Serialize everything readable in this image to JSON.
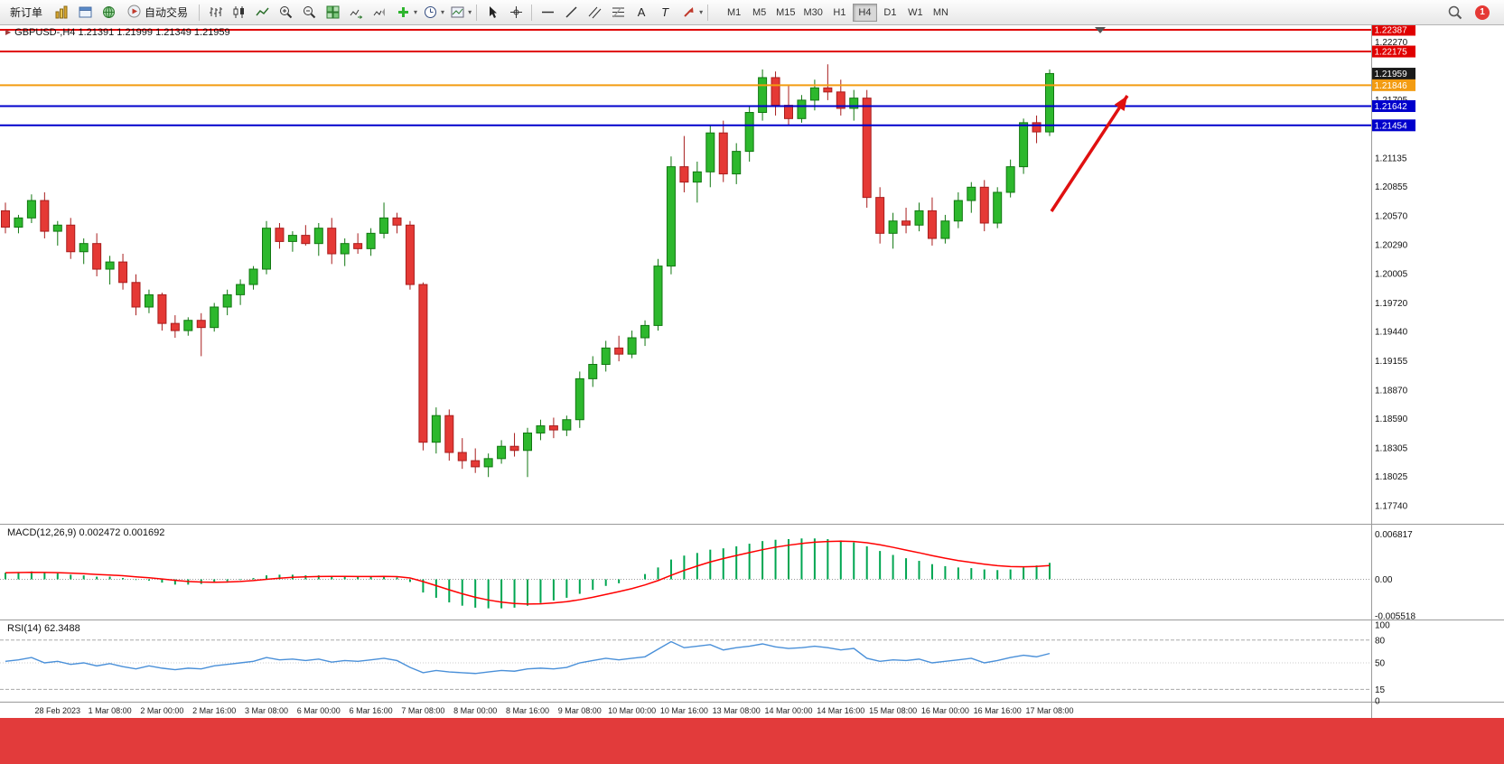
{
  "window": {
    "footer_band_color": "#e23b3b"
  },
  "toolbar": {
    "new_order_label": "新订单",
    "auto_trading_label": "自动交易",
    "timeframes": [
      "M1",
      "M5",
      "M15",
      "M30",
      "H1",
      "H4",
      "D1",
      "W1",
      "MN"
    ],
    "active_timeframe": "H4",
    "notification_count": "1",
    "icons": [
      "market-watch",
      "data-window",
      "navigator",
      "auto-trading",
      "bar-chart",
      "candlestick-chart",
      "line-chart",
      "zoom-in",
      "zoom-out",
      "tile-windows",
      "auto-scroll",
      "chart-shift",
      "add-indicator",
      "periods",
      "templates",
      "cursor",
      "crosshair",
      "horizontal-line-tool",
      "trendline-tool",
      "channel-tool",
      "fibonacci-tool",
      "text-tool",
      "label-tool",
      "arrow-tools",
      "search",
      "notification"
    ]
  },
  "main_chart": {
    "title": "GBPUSD-,H4 1.21391 1.21999 1.21349 1.21959",
    "current_price_label": "1.21959"
  },
  "macd_panel": {
    "name": "MACD(12,26,9)",
    "value_main": "0.002472",
    "value_signal": "0.001692"
  },
  "rsi_panel": {
    "name": "RSI(14)",
    "value": "62.3488"
  },
  "chart_data": {
    "type": "candlestick",
    "symbol": "GBPUSD-",
    "timeframe": "H4",
    "panels": [
      "price",
      "macd",
      "rsi"
    ],
    "colors": {
      "bull": "#2db82d",
      "bull_border": "#117711",
      "bear": "#e53935",
      "bear_border": "#a81d1d",
      "macd_hist": "#00a651",
      "macd_signal": "#ff0000",
      "rsi_line": "#4a90d9",
      "hline_red": "#e00000",
      "hline_orange": "#f39c12",
      "hline_blue": "#0000cc",
      "arrow": "#e01010"
    },
    "price_axis": {
      "top_price": 1.22387,
      "bottom_price": 1.1774,
      "ticks": [
        "1.22270",
        "1.21705",
        "1.21135",
        "1.20855",
        "1.20570",
        "1.20290",
        "1.20005",
        "1.19720",
        "1.19440",
        "1.19155",
        "1.18870",
        "1.18590",
        "1.18305",
        "1.18025",
        "1.17740"
      ]
    },
    "badges": [
      {
        "label": "1.22387",
        "price": 1.22387,
        "color": "#e00000"
      },
      {
        "label": "1.22175",
        "price": 1.22175,
        "color": "#e00000"
      },
      {
        "label": "1.21959",
        "price": 1.21959,
        "color": "#1a1a1a"
      },
      {
        "label": "1.21846",
        "price": 1.21846,
        "color": "#f39c12"
      },
      {
        "label": "1.21642",
        "price": 1.21642,
        "color": "#0000cc"
      },
      {
        "label": "1.21454",
        "price": 1.21454,
        "color": "#0000cc"
      }
    ],
    "hlines": [
      {
        "price": 1.22387,
        "color": "#e00000"
      },
      {
        "price": 1.22175,
        "color": "#e00000"
      },
      {
        "price": 1.21846,
        "color": "#f39c12"
      },
      {
        "price": 1.21642,
        "color": "#0000cc"
      },
      {
        "price": 1.21454,
        "color": "#0000cc"
      }
    ],
    "ohlc": [
      [
        1.2062,
        1.207,
        1.204,
        1.2046
      ],
      [
        1.2046,
        1.2058,
        1.204,
        1.2055
      ],
      [
        1.2055,
        1.2078,
        1.205,
        1.2072
      ],
      [
        1.2072,
        1.208,
        1.2035,
        1.2042
      ],
      [
        1.2042,
        1.2052,
        1.2028,
        1.2048
      ],
      [
        1.2048,
        1.2055,
        1.2015,
        1.2022
      ],
      [
        1.2022,
        1.2035,
        1.201,
        1.203
      ],
      [
        1.203,
        1.204,
        1.1998,
        1.2005
      ],
      [
        1.2005,
        1.2018,
        1.199,
        1.2012
      ],
      [
        1.2012,
        1.202,
        1.1985,
        1.1992
      ],
      [
        1.1992,
        1.2,
        1.196,
        1.1968
      ],
      [
        1.1968,
        1.1985,
        1.1962,
        1.198
      ],
      [
        1.198,
        1.1982,
        1.1945,
        1.1952
      ],
      [
        1.1952,
        1.196,
        1.1938,
        1.1945
      ],
      [
        1.1945,
        1.1958,
        1.194,
        1.1955
      ],
      [
        1.1955,
        1.1962,
        1.192,
        1.1948
      ],
      [
        1.1948,
        1.1972,
        1.1944,
        1.1968
      ],
      [
        1.1968,
        1.1985,
        1.196,
        1.198
      ],
      [
        1.198,
        1.1995,
        1.197,
        1.199
      ],
      [
        1.199,
        1.2008,
        1.1985,
        1.2005
      ],
      [
        1.2005,
        1.2052,
        1.2,
        1.2045
      ],
      [
        1.2045,
        1.205,
        1.2025,
        1.2032
      ],
      [
        1.2032,
        1.2042,
        1.2022,
        1.2038
      ],
      [
        1.2038,
        1.2048,
        1.2028,
        1.203
      ],
      [
        1.203,
        1.205,
        1.2018,
        1.2045
      ],
      [
        1.2045,
        1.2055,
        1.201,
        1.202
      ],
      [
        1.202,
        1.2035,
        1.2008,
        1.203
      ],
      [
        1.203,
        1.204,
        1.202,
        1.2025
      ],
      [
        1.2025,
        1.2045,
        1.2018,
        1.204
      ],
      [
        1.204,
        1.207,
        1.2035,
        1.2055
      ],
      [
        1.2055,
        1.206,
        1.204,
        1.2048
      ],
      [
        1.2048,
        1.2052,
        1.1985,
        1.199
      ],
      [
        1.199,
        1.1992,
        1.1828,
        1.1836
      ],
      [
        1.1836,
        1.187,
        1.1825,
        1.1862
      ],
      [
        1.1862,
        1.1868,
        1.1818,
        1.1826
      ],
      [
        1.1826,
        1.184,
        1.181,
        1.1818
      ],
      [
        1.1818,
        1.183,
        1.1806,
        1.1812
      ],
      [
        1.1812,
        1.1825,
        1.1802,
        1.182
      ],
      [
        1.182,
        1.1838,
        1.1815,
        1.1832
      ],
      [
        1.1832,
        1.1845,
        1.1822,
        1.1828
      ],
      [
        1.1828,
        1.185,
        1.1802,
        1.1845
      ],
      [
        1.1845,
        1.1858,
        1.1838,
        1.1852
      ],
      [
        1.1852,
        1.186,
        1.184,
        1.1848
      ],
      [
        1.1848,
        1.1862,
        1.1842,
        1.1858
      ],
      [
        1.1858,
        1.1905,
        1.185,
        1.1898
      ],
      [
        1.1898,
        1.192,
        1.189,
        1.1912
      ],
      [
        1.1912,
        1.1935,
        1.1905,
        1.1928
      ],
      [
        1.1928,
        1.194,
        1.1915,
        1.1922
      ],
      [
        1.1922,
        1.1945,
        1.1918,
        1.1938
      ],
      [
        1.1938,
        1.1955,
        1.193,
        1.195
      ],
      [
        1.195,
        1.2015,
        1.1945,
        1.2008
      ],
      [
        1.2008,
        1.2115,
        1.2,
        1.2105
      ],
      [
        1.2105,
        1.2135,
        1.208,
        1.209
      ],
      [
        1.209,
        1.211,
        1.207,
        1.21
      ],
      [
        1.21,
        1.2145,
        1.2085,
        1.2138
      ],
      [
        1.2138,
        1.215,
        1.209,
        1.2098
      ],
      [
        1.2098,
        1.2128,
        1.2088,
        1.212
      ],
      [
        1.212,
        1.2165,
        1.211,
        1.2158
      ],
      [
        1.2158,
        1.22,
        1.215,
        1.2192
      ],
      [
        1.2192,
        1.2198,
        1.2155,
        1.2165
      ],
      [
        1.2165,
        1.2185,
        1.2145,
        1.2152
      ],
      [
        1.2152,
        1.2175,
        1.2148,
        1.217
      ],
      [
        1.217,
        1.219,
        1.216,
        1.2182
      ],
      [
        1.2182,
        1.2205,
        1.217,
        1.2178
      ],
      [
        1.2178,
        1.219,
        1.2155,
        1.2162
      ],
      [
        1.2162,
        1.218,
        1.215,
        1.2172
      ],
      [
        1.2172,
        1.218,
        1.2065,
        1.2075
      ],
      [
        1.2075,
        1.2085,
        1.203,
        1.204
      ],
      [
        1.204,
        1.206,
        1.2025,
        1.2052
      ],
      [
        1.2052,
        1.2065,
        1.204,
        1.2048
      ],
      [
        1.2048,
        1.207,
        1.2042,
        1.2062
      ],
      [
        1.2062,
        1.2075,
        1.2028,
        1.2035
      ],
      [
        1.2035,
        1.2058,
        1.203,
        1.2052
      ],
      [
        1.2052,
        1.208,
        1.2045,
        1.2072
      ],
      [
        1.2072,
        1.209,
        1.206,
        1.2085
      ],
      [
        1.2085,
        1.2092,
        1.2042,
        1.205
      ],
      [
        1.205,
        1.2085,
        1.2045,
        1.208
      ],
      [
        1.208,
        1.2112,
        1.2075,
        1.2105
      ],
      [
        1.2105,
        1.2152,
        1.2098,
        1.2148
      ],
      [
        1.2148,
        1.2155,
        1.2128,
        1.2139
      ],
      [
        1.2139,
        1.22,
        1.2135,
        1.2196
      ]
    ],
    "macd": [
      0.001,
      0.0011,
      0.0012,
      0.001,
      0.0009,
      0.0007,
      0.0006,
      0.0004,
      0.0004,
      0.0002,
      -0.0001,
      -0.0002,
      -0.0005,
      -0.0008,
      -0.0008,
      -0.0007,
      -0.0005,
      -0.0003,
      -0.0001,
      0.0002,
      0.0006,
      0.0007,
      0.0007,
      0.0006,
      0.0006,
      0.0005,
      0.0004,
      0.0004,
      0.0004,
      0.0005,
      0.0003,
      -0.0004,
      -0.002,
      -0.0028,
      -0.0035,
      -0.004,
      -0.0043,
      -0.0044,
      -0.0044,
      -0.0043,
      -0.004,
      -0.0036,
      -0.0032,
      -0.0028,
      -0.0022,
      -0.0016,
      -0.001,
      -0.0006,
      0.0,
      0.0008,
      0.0018,
      0.003,
      0.0036,
      0.004,
      0.0045,
      0.0047,
      0.005,
      0.0054,
      0.0058,
      0.006,
      0.0061,
      0.0062,
      0.0062,
      0.0061,
      0.0059,
      0.0056,
      0.005,
      0.0043,
      0.0037,
      0.0032,
      0.0028,
      0.0023,
      0.002,
      0.0018,
      0.0017,
      0.0015,
      0.0014,
      0.0015,
      0.0018,
      0.0021,
      0.0025
    ],
    "rsi": [
      52,
      54,
      57,
      50,
      52,
      48,
      50,
      46,
      49,
      45,
      42,
      46,
      43,
      41,
      43,
      42,
      46,
      48,
      50,
      52,
      57,
      54,
      55,
      53,
      55,
      51,
      53,
      52,
      54,
      56,
      53,
      44,
      37,
      40,
      38,
      37,
      36,
      38,
      40,
      39,
      42,
      43,
      42,
      44,
      50,
      53,
      56,
      54,
      56,
      58,
      68,
      78,
      70,
      72,
      74,
      67,
      70,
      72,
      75,
      71,
      69,
      70,
      72,
      70,
      67,
      69,
      56,
      52,
      54,
      53,
      55,
      50,
      52,
      54,
      56,
      50,
      53,
      57,
      60,
      58,
      62.35
    ],
    "macd_axis": {
      "max": 0.006817,
      "min": -0.005518,
      "tick_labels": [
        "0.006817",
        "0.00",
        "-0.005518"
      ]
    },
    "rsi_axis": {
      "max": 100,
      "min": 0,
      "tick_labels": [
        "100",
        "80",
        "50",
        "15",
        "0"
      ],
      "levels": [
        80,
        50,
        15
      ]
    },
    "time_labels": [
      "28 Feb 2023",
      "1 Mar 08:00",
      "2 Mar 00:00",
      "2 Mar 16:00",
      "3 Mar 08:00",
      "6 Mar 00:00",
      "6 Mar 16:00",
      "7 Mar 08:00",
      "8 Mar 00:00",
      "8 Mar 16:00",
      "9 Mar 08:00",
      "10 Mar 00:00",
      "10 Mar 16:00",
      "13 Mar 08:00",
      "14 Mar 00:00",
      "14 Mar 16:00",
      "15 Mar 08:00",
      "16 Mar 00:00",
      "16 Mar 16:00",
      "17 Mar 08:00"
    ]
  }
}
